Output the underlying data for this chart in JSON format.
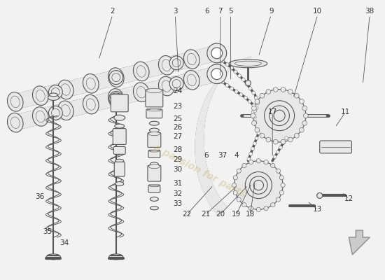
{
  "bg": "#f2f2f2",
  "lc": "#555555",
  "fc": "#e8e8e8",
  "wm_text": "a passion for parts",
  "wm_color": "#c8b86e",
  "wm_alpha": 0.4,
  "figsize": [
    5.5,
    4.0
  ],
  "dpi": 100
}
